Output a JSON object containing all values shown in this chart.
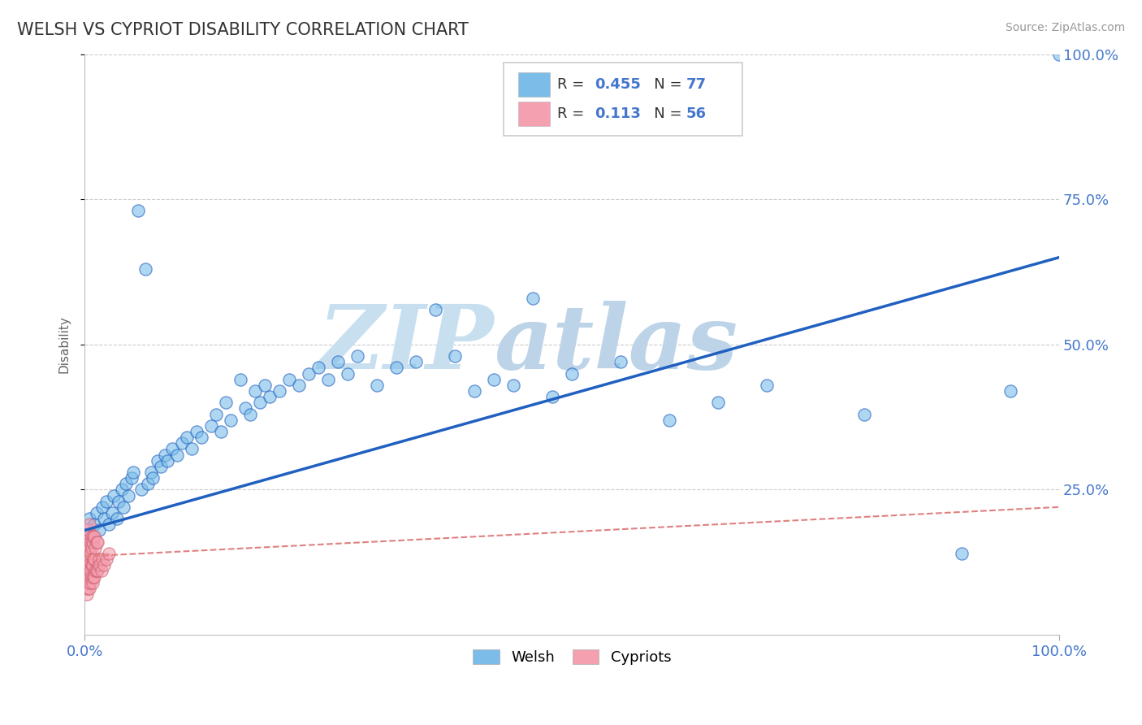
{
  "title": "WELSH VS CYPRIOT DISABILITY CORRELATION CHART",
  "source": "Source: ZipAtlas.com",
  "ylabel": "Disability",
  "background_color": "#ffffff",
  "welsh_R": 0.455,
  "welsh_N": 77,
  "cypriot_R": 0.113,
  "cypriot_N": 56,
  "welsh_color": "#7bbde8",
  "cypriot_color": "#f4a0b0",
  "welsh_line_color": "#2060c0",
  "cypriot_line_color": "#e08080",
  "xlim": [
    0,
    1
  ],
  "ylim": [
    0,
    1
  ],
  "welsh_x": [
    0.003,
    0.005,
    0.008,
    0.01,
    0.012,
    0.015,
    0.018,
    0.02,
    0.022,
    0.025,
    0.028,
    0.03,
    0.033,
    0.035,
    0.038,
    0.04,
    0.042,
    0.045,
    0.048,
    0.05,
    0.055,
    0.058,
    0.062,
    0.065,
    0.068,
    0.07,
    0.075,
    0.078,
    0.082,
    0.085,
    0.09,
    0.095,
    0.1,
    0.105,
    0.11,
    0.115,
    0.12,
    0.13,
    0.135,
    0.14,
    0.145,
    0.15,
    0.16,
    0.165,
    0.17,
    0.175,
    0.18,
    0.185,
    0.19,
    0.2,
    0.21,
    0.22,
    0.23,
    0.24,
    0.25,
    0.26,
    0.27,
    0.28,
    0.3,
    0.32,
    0.34,
    0.36,
    0.38,
    0.4,
    0.42,
    0.44,
    0.46,
    0.48,
    0.5,
    0.55,
    0.6,
    0.65,
    0.7,
    0.8,
    0.9,
    0.95,
    1.0
  ],
  "welsh_y": [
    0.17,
    0.2,
    0.16,
    0.19,
    0.21,
    0.18,
    0.22,
    0.2,
    0.23,
    0.19,
    0.21,
    0.24,
    0.2,
    0.23,
    0.25,
    0.22,
    0.26,
    0.24,
    0.27,
    0.28,
    0.73,
    0.25,
    0.63,
    0.26,
    0.28,
    0.27,
    0.3,
    0.29,
    0.31,
    0.3,
    0.32,
    0.31,
    0.33,
    0.34,
    0.32,
    0.35,
    0.34,
    0.36,
    0.38,
    0.35,
    0.4,
    0.37,
    0.44,
    0.39,
    0.38,
    0.42,
    0.4,
    0.43,
    0.41,
    0.42,
    0.44,
    0.43,
    0.45,
    0.46,
    0.44,
    0.47,
    0.45,
    0.48,
    0.43,
    0.46,
    0.47,
    0.56,
    0.48,
    0.42,
    0.44,
    0.43,
    0.58,
    0.41,
    0.45,
    0.47,
    0.37,
    0.4,
    0.43,
    0.38,
    0.14,
    0.42,
    1.0
  ],
  "cypriot_x": [
    0.001,
    0.001,
    0.001,
    0.001,
    0.001,
    0.002,
    0.002,
    0.002,
    0.002,
    0.002,
    0.003,
    0.003,
    0.003,
    0.003,
    0.003,
    0.004,
    0.004,
    0.004,
    0.004,
    0.004,
    0.005,
    0.005,
    0.005,
    0.005,
    0.005,
    0.006,
    0.006,
    0.006,
    0.006,
    0.007,
    0.007,
    0.007,
    0.007,
    0.008,
    0.008,
    0.008,
    0.009,
    0.009,
    0.009,
    0.01,
    0.01,
    0.01,
    0.011,
    0.011,
    0.012,
    0.012,
    0.013,
    0.013,
    0.014,
    0.015,
    0.016,
    0.017,
    0.018,
    0.02,
    0.022,
    0.025
  ],
  "cypriot_y": [
    0.08,
    0.1,
    0.12,
    0.14,
    0.16,
    0.07,
    0.09,
    0.11,
    0.13,
    0.15,
    0.08,
    0.1,
    0.12,
    0.14,
    0.17,
    0.09,
    0.11,
    0.13,
    0.15,
    0.18,
    0.08,
    0.1,
    0.12,
    0.15,
    0.19,
    0.09,
    0.11,
    0.14,
    0.16,
    0.1,
    0.12,
    0.15,
    0.17,
    0.09,
    0.12,
    0.16,
    0.1,
    0.13,
    0.17,
    0.1,
    0.13,
    0.17,
    0.11,
    0.15,
    0.11,
    0.16,
    0.11,
    0.16,
    0.12,
    0.13,
    0.12,
    0.11,
    0.13,
    0.12,
    0.13,
    0.14
  ],
  "welsh_trendline": [
    0.18,
    0.65
  ],
  "cypriot_trendline": [
    0.135,
    0.22
  ],
  "legend_items": [
    {
      "label": "R = 0.455    N = 77",
      "color": "#7bbde8"
    },
    {
      "label": "R =  0.113   N = 56",
      "color": "#f4a0b0"
    }
  ]
}
